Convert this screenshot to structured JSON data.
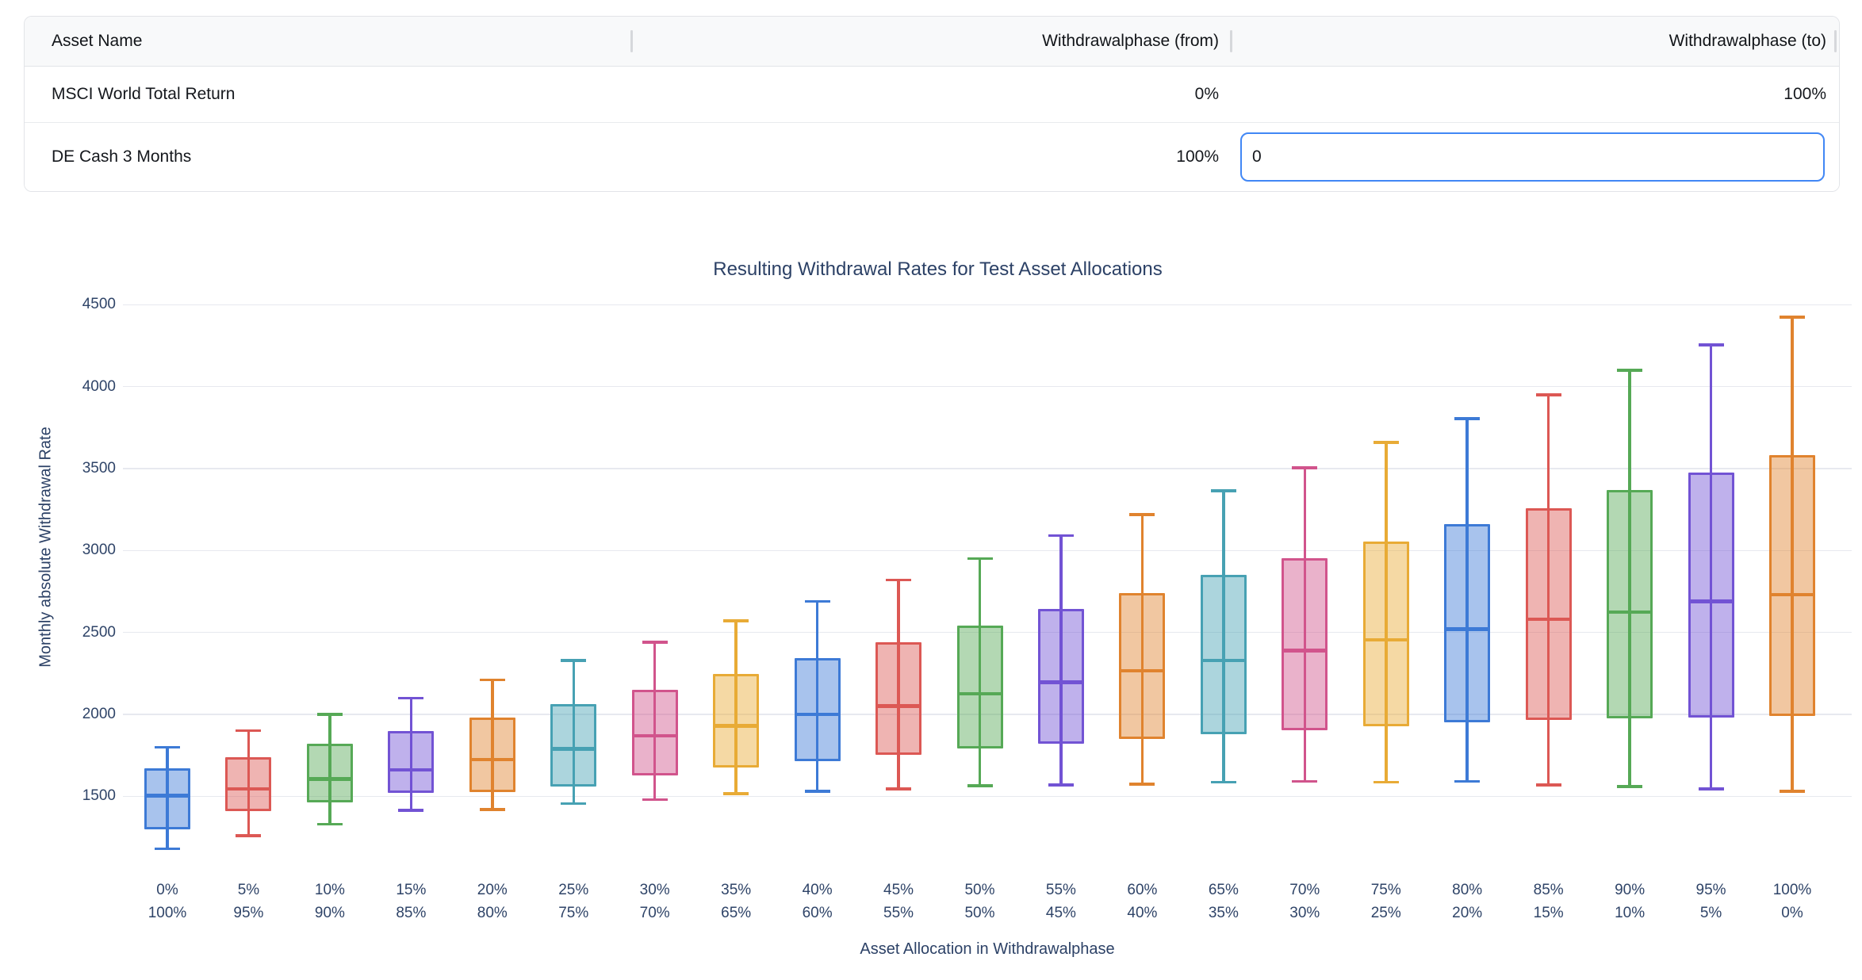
{
  "table": {
    "columns": [
      "Asset Name",
      "Withdrawalphase (from)",
      "Withdrawalphase (to)"
    ],
    "rows": [
      {
        "name": "MSCI World Total Return",
        "from": "0%",
        "to": "100%"
      },
      {
        "name": "DE Cash 3 Months",
        "from": "100%",
        "to": ""
      }
    ],
    "focused_input": {
      "row": 1,
      "column": "to",
      "value": "0",
      "border_color": "#4187f5"
    }
  },
  "chart_data": {
    "type": "box",
    "title": "Resulting Withdrawal Rates for Test Asset Allocations",
    "xlabel": "Asset Allocation in Withdrawalphase",
    "ylabel": "Monthly absolute Withdrawal Rate",
    "ylim": [
      1100,
      4600
    ],
    "yticks": [
      1500,
      2000,
      2500,
      3000,
      3500,
      4000,
      4500
    ],
    "grid": "horizontal-only",
    "legend": "none",
    "categories": [
      [
        "0%",
        "100%"
      ],
      [
        "5%",
        "95%"
      ],
      [
        "10%",
        "90%"
      ],
      [
        "15%",
        "85%"
      ],
      [
        "20%",
        "80%"
      ],
      [
        "25%",
        "75%"
      ],
      [
        "30%",
        "70%"
      ],
      [
        "35%",
        "65%"
      ],
      [
        "40%",
        "60%"
      ],
      [
        "45%",
        "55%"
      ],
      [
        "50%",
        "50%"
      ],
      [
        "55%",
        "45%"
      ],
      [
        "60%",
        "40%"
      ],
      [
        "65%",
        "35%"
      ],
      [
        "70%",
        "30%"
      ],
      [
        "75%",
        "25%"
      ],
      [
        "80%",
        "20%"
      ],
      [
        "85%",
        "15%"
      ],
      [
        "90%",
        "10%"
      ],
      [
        "95%",
        "5%"
      ],
      [
        "100%",
        "0%"
      ]
    ],
    "boxes": [
      {
        "low": 1180,
        "q1": 1300,
        "median": 1505,
        "q3": 1670,
        "high": 1800
      },
      {
        "low": 1260,
        "q1": 1410,
        "median": 1545,
        "q3": 1740,
        "high": 1900
      },
      {
        "low": 1330,
        "q1": 1465,
        "median": 1605,
        "q3": 1820,
        "high": 2000
      },
      {
        "low": 1415,
        "q1": 1520,
        "median": 1660,
        "q3": 1900,
        "high": 2100
      },
      {
        "low": 1420,
        "q1": 1525,
        "median": 1725,
        "q3": 1980,
        "high": 2210
      },
      {
        "low": 1455,
        "q1": 1560,
        "median": 1790,
        "q3": 2065,
        "high": 2330
      },
      {
        "low": 1480,
        "q1": 1625,
        "median": 1870,
        "q3": 2150,
        "high": 2440
      },
      {
        "low": 1515,
        "q1": 1675,
        "median": 1930,
        "q3": 2245,
        "high": 2570
      },
      {
        "low": 1530,
        "q1": 1715,
        "median": 2000,
        "q3": 2345,
        "high": 2690
      },
      {
        "low": 1545,
        "q1": 1755,
        "median": 2050,
        "q3": 2440,
        "high": 2820
      },
      {
        "low": 1565,
        "q1": 1790,
        "median": 2125,
        "q3": 2540,
        "high": 2950
      },
      {
        "low": 1570,
        "q1": 1820,
        "median": 2195,
        "q3": 2645,
        "high": 3090
      },
      {
        "low": 1575,
        "q1": 1850,
        "median": 2265,
        "q3": 2740,
        "high": 3220
      },
      {
        "low": 1585,
        "q1": 1880,
        "median": 2330,
        "q3": 2850,
        "high": 3365
      },
      {
        "low": 1590,
        "q1": 1905,
        "median": 2390,
        "q3": 2955,
        "high": 3505
      },
      {
        "low": 1585,
        "q1": 1925,
        "median": 2455,
        "q3": 3055,
        "high": 3660
      },
      {
        "low": 1590,
        "q1": 1950,
        "median": 2520,
        "q3": 3160,
        "high": 3805
      },
      {
        "low": 1570,
        "q1": 1965,
        "median": 2580,
        "q3": 3260,
        "high": 3950
      },
      {
        "low": 1560,
        "q1": 1975,
        "median": 2625,
        "q3": 3370,
        "high": 4100
      },
      {
        "low": 1545,
        "q1": 1980,
        "median": 2690,
        "q3": 3475,
        "high": 4255
      },
      {
        "low": 1530,
        "q1": 1990,
        "median": 2730,
        "q3": 3580,
        "high": 4425
      }
    ],
    "colors": [
      "#3d7ad6",
      "#dc5854",
      "#56a956",
      "#7253d4",
      "#e0832e",
      "#47a1b3",
      "#d1548c",
      "#e8ab36"
    ],
    "fill_alpha": 0.45
  }
}
